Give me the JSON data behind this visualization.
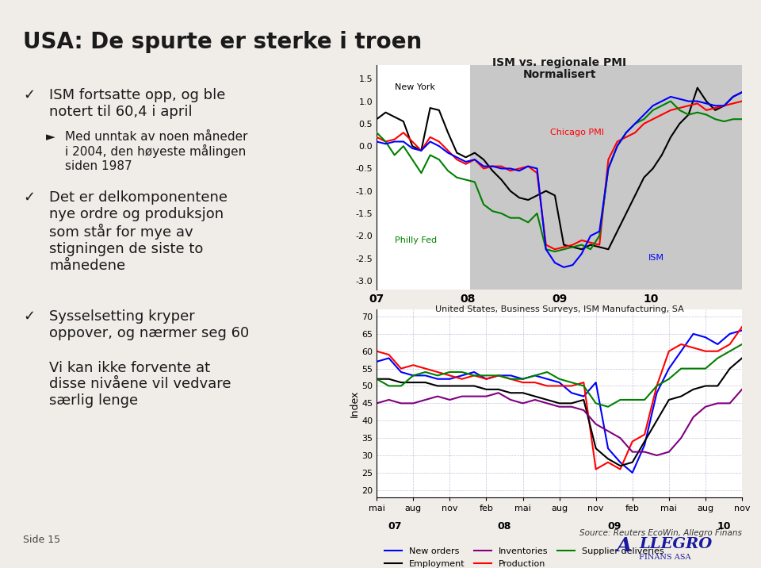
{
  "title": "USA: De spurte er sterke i troen",
  "background_color": "#f0ede8",
  "chart1_title_line1": "ISM vs. regionale PMI",
  "chart1_title_line2": "Normalisert",
  "chart1_yticks": [
    1.5,
    1.0,
    0.5,
    0.0,
    -0.5,
    -1.0,
    -1.5,
    -2.0,
    -2.5,
    -3.0
  ],
  "chart1_xticks_labels": [
    "07",
    "08",
    "09",
    "10"
  ],
  "chart2_title": "United States, Business Surveys, ISM Manufacturing, SA",
  "chart2_ylabel": "Index",
  "chart2_yticks": [
    20,
    25,
    30,
    35,
    40,
    45,
    50,
    55,
    60,
    65,
    70
  ],
  "chart2_source": "Source: Reuters EcoWin, Allegro Finans",
  "slide_number": "Side 15",
  "colors": {
    "new_york": "#000000",
    "chicago_pmi": "#ff0000",
    "philly_fed": "#008000",
    "ism": "#0000ff",
    "new_orders": "#0000ff",
    "production": "#ff0000",
    "employment": "#000000",
    "supplier_deliveries": "#008000",
    "inventories": "#800080"
  },
  "chart1_new_york": [
    0.6,
    0.75,
    0.65,
    0.55,
    0.0,
    -0.1,
    0.85,
    0.8,
    0.3,
    -0.15,
    -0.25,
    -0.15,
    -0.3,
    -0.55,
    -0.75,
    -1.0,
    -1.15,
    -1.2,
    -1.1,
    -1.0,
    -1.1,
    -2.2,
    -2.25,
    -2.3,
    -2.2,
    -2.25,
    -2.3,
    -1.9,
    -1.5,
    -1.1,
    -0.7,
    -0.5,
    -0.2,
    0.2,
    0.5,
    0.7,
    1.3,
    1.0,
    0.8,
    0.9,
    1.1,
    1.2
  ],
  "chart1_chicago": [
    0.2,
    0.1,
    0.15,
    0.3,
    0.1,
    -0.1,
    0.2,
    0.1,
    -0.1,
    -0.3,
    -0.4,
    -0.3,
    -0.5,
    -0.45,
    -0.45,
    -0.55,
    -0.5,
    -0.45,
    -0.6,
    -2.2,
    -2.3,
    -2.25,
    -2.2,
    -2.1,
    -2.15,
    -2.2,
    -0.3,
    0.1,
    0.2,
    0.3,
    0.5,
    0.6,
    0.7,
    0.8,
    0.85,
    0.9,
    0.95,
    0.8,
    0.85,
    0.9,
    0.95,
    1.0
  ],
  "chart1_philly": [
    0.3,
    0.1,
    -0.2,
    0.0,
    -0.3,
    -0.6,
    -0.2,
    -0.3,
    -0.55,
    -0.7,
    -0.75,
    -0.8,
    -1.3,
    -1.45,
    -1.5,
    -1.6,
    -1.6,
    -1.7,
    -1.5,
    -2.3,
    -2.35,
    -2.3,
    -2.25,
    -2.2,
    -2.3,
    -2.0,
    -0.5,
    0.0,
    0.3,
    0.5,
    0.6,
    0.8,
    0.9,
    1.0,
    0.8,
    0.7,
    0.75,
    0.7,
    0.6,
    0.55,
    0.6,
    0.6
  ],
  "chart1_ism": [
    0.1,
    0.05,
    0.1,
    0.1,
    -0.05,
    -0.1,
    0.1,
    0.0,
    -0.15,
    -0.25,
    -0.35,
    -0.3,
    -0.45,
    -0.45,
    -0.5,
    -0.5,
    -0.55,
    -0.45,
    -0.5,
    -2.3,
    -2.6,
    -2.7,
    -2.65,
    -2.4,
    -2.0,
    -1.9,
    -0.5,
    0.0,
    0.3,
    0.5,
    0.7,
    0.9,
    1.0,
    1.1,
    1.05,
    1.0,
    1.0,
    0.95,
    0.9,
    0.9,
    1.1,
    1.2
  ],
  "chart2_new_orders": [
    57,
    58,
    54,
    53,
    53,
    52,
    52,
    53,
    54,
    52,
    53,
    53,
    52,
    53,
    52,
    51,
    48,
    47,
    51,
    32,
    28,
    25,
    33,
    48,
    55,
    60,
    65,
    64,
    62,
    65,
    66
  ],
  "chart2_production": [
    60,
    59,
    55,
    56,
    55,
    54,
    53,
    52,
    53,
    52,
    53,
    52,
    51,
    51,
    50,
    50,
    50,
    51,
    26,
    28,
    26,
    34,
    36,
    50,
    60,
    62,
    61,
    60,
    60,
    62,
    67
  ],
  "chart2_employment": [
    52,
    52,
    51,
    51,
    51,
    50,
    50,
    50,
    50,
    49,
    49,
    48,
    48,
    47,
    46,
    45,
    45,
    46,
    32,
    29,
    27,
    28,
    34,
    40,
    46,
    47,
    49,
    50,
    50,
    55,
    58
  ],
  "chart2_supplier": [
    52,
    50,
    50,
    53,
    54,
    53,
    54,
    54,
    53,
    53,
    53,
    52,
    52,
    53,
    54,
    52,
    51,
    50,
    45,
    44,
    46,
    46,
    46,
    50,
    52,
    55,
    55,
    55,
    58,
    60,
    62
  ],
  "chart2_inventories": [
    45,
    46,
    45,
    45,
    46,
    47,
    46,
    47,
    47,
    47,
    48,
    46,
    45,
    46,
    45,
    44,
    44,
    43,
    39,
    37,
    35,
    31,
    31,
    30,
    31,
    35,
    41,
    44,
    45,
    45,
    49
  ]
}
